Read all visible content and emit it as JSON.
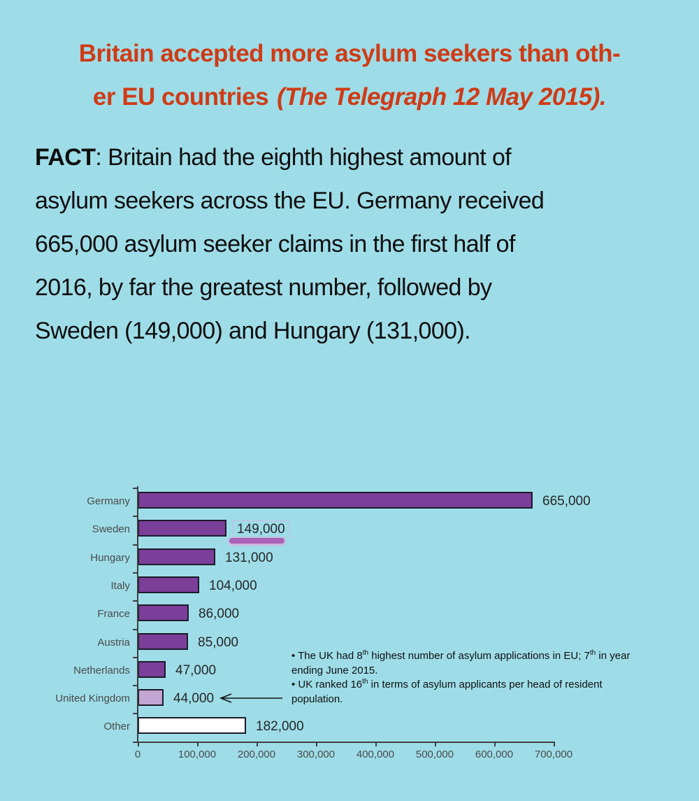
{
  "theme": {
    "background": "#9edde8",
    "headline_color": "#cf3b16",
    "text_color": "#0e0e0e",
    "axis_color": "#3f3f3f",
    "chart_label_color": "#4a4a4a",
    "value_label_color": "#262626"
  },
  "headline": {
    "line1": "Britain accepted more asylum seekers than oth-",
    "line2_text": "er EU countries",
    "line2_source": "(The Telegraph 12 May 2015)."
  },
  "fact": {
    "label": "FACT",
    "line1_rest": ": Britain had the eighth highest amount of",
    "line2": "asylum seekers across the EU. Germany received",
    "line3": "665,000 asylum seeker claims in the first half of",
    "line4": "2016, by far the greatest number, followed by",
    "line5": "Sweden (149,000) and Hungary (131,000)."
  },
  "chart_data": {
    "type": "bar",
    "orientation": "horizontal",
    "categories": [
      "Germany",
      "Sweden",
      "Hungary",
      "Italy",
      "France",
      "Austria",
      "Netherlands",
      "United Kingdom",
      "Other"
    ],
    "values": [
      665000,
      149000,
      131000,
      104000,
      86000,
      85000,
      47000,
      44000,
      182000
    ],
    "value_labels": [
      "665,000",
      "149,000",
      "131,000",
      "104,000",
      "86,000",
      "85,000",
      "47,000",
      "44,000",
      "182,000"
    ],
    "bar_colors": [
      "#7b3e99",
      "#7b3e99",
      "#7b3e99",
      "#7b3e99",
      "#7b3e99",
      "#7b3e99",
      "#7b3e99",
      "#c2a5d3",
      "#ffffff"
    ],
    "bar_border_color": "#1b1b29",
    "xlim": [
      0,
      700000
    ],
    "x_ticks": [
      "0",
      "100,000",
      "200,000",
      "300,000",
      "400,000",
      "500,000",
      "600,000",
      "700,000"
    ],
    "grid": false,
    "highlight": {
      "category": "Sweden",
      "color": "#a763b4",
      "glow": "#ef9bd9"
    },
    "arrow_target_category": "United Kingdom",
    "annotation": {
      "bullet1_p1": "• The UK had 8",
      "bullet1_s1": "th",
      "bullet1_p2": " highest number of asylum applications in EU; 7",
      "bullet1_s2": "th",
      "bullet1_p3": " in year ending June 2015.",
      "bullet2_p1": "• UK ranked 16",
      "bullet2_s1": "th",
      "bullet2_p2": " in terms of asylum applicants per head of resident population."
    }
  }
}
